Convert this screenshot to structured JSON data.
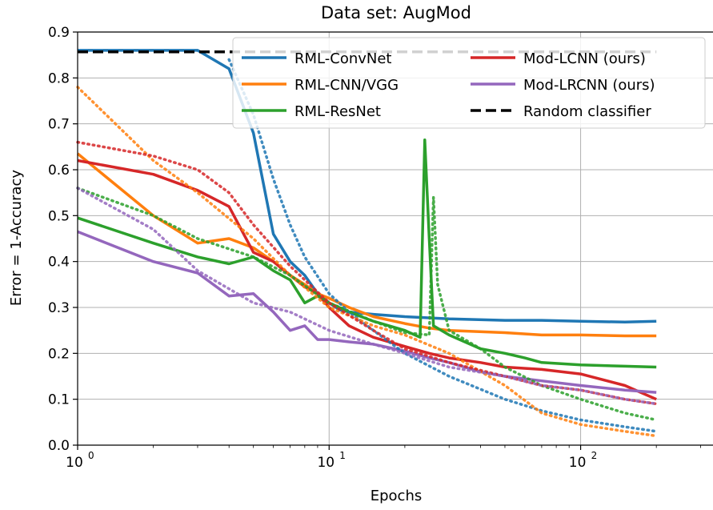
{
  "chart_data": {
    "type": "line",
    "title": "Data set: AugMod",
    "xlabel": "Epochs",
    "ylabel": "Error = 1-Accuracy",
    "x_scale": "log",
    "xlim": [
      1,
      200
    ],
    "ylim": [
      0,
      0.9
    ],
    "grid": true,
    "legend_position": "top-right",
    "x_ticks": [
      {
        "value": 1,
        "base": "10",
        "exp": "0"
      },
      {
        "value": 10,
        "base": "10",
        "exp": "1"
      },
      {
        "value": 100,
        "base": "10",
        "exp": "2"
      }
    ],
    "y_ticks": [
      "0.0",
      "0.1",
      "0.2",
      "0.3",
      "0.4",
      "0.5",
      "0.6",
      "0.7",
      "0.8",
      "0.9"
    ],
    "series": [
      {
        "name": "RML-ConvNet",
        "color": "#1f77b4",
        "style": "solid",
        "points": [
          [
            1,
            0.86
          ],
          [
            2,
            0.86
          ],
          [
            3,
            0.86
          ],
          [
            4,
            0.82
          ],
          [
            5,
            0.68
          ],
          [
            6,
            0.46
          ],
          [
            7,
            0.4
          ],
          [
            8,
            0.37
          ],
          [
            9,
            0.33
          ],
          [
            10,
            0.31
          ],
          [
            11,
            0.295
          ],
          [
            12,
            0.29
          ],
          [
            15,
            0.285
          ],
          [
            20,
            0.28
          ],
          [
            30,
            0.275
          ],
          [
            50,
            0.272
          ],
          [
            70,
            0.272
          ],
          [
            100,
            0.27
          ],
          [
            150,
            0.268
          ],
          [
            200,
            0.27
          ]
        ]
      },
      {
        "name": "RML-CNN/VGG",
        "color": "#ff7f0e",
        "style": "solid",
        "points": [
          [
            1,
            0.635
          ],
          [
            2,
            0.5
          ],
          [
            3,
            0.44
          ],
          [
            4,
            0.45
          ],
          [
            5,
            0.43
          ],
          [
            6,
            0.4
          ],
          [
            7,
            0.37
          ],
          [
            8,
            0.35
          ],
          [
            9,
            0.33
          ],
          [
            10,
            0.32
          ],
          [
            12,
            0.3
          ],
          [
            15,
            0.28
          ],
          [
            20,
            0.265
          ],
          [
            25,
            0.255
          ],
          [
            30,
            0.25
          ],
          [
            50,
            0.245
          ],
          [
            70,
            0.24
          ],
          [
            100,
            0.24
          ],
          [
            150,
            0.238
          ],
          [
            200,
            0.238
          ]
        ]
      },
      {
        "name": "RML-ResNet",
        "color": "#2ca02c",
        "style": "solid",
        "points": [
          [
            1,
            0.495
          ],
          [
            2,
            0.44
          ],
          [
            3,
            0.41
          ],
          [
            4,
            0.395
          ],
          [
            5,
            0.41
          ],
          [
            6,
            0.38
          ],
          [
            7,
            0.36
          ],
          [
            8,
            0.31
          ],
          [
            9,
            0.325
          ],
          [
            10,
            0.31
          ],
          [
            12,
            0.29
          ],
          [
            15,
            0.27
          ],
          [
            20,
            0.25
          ],
          [
            23,
            0.235
          ],
          [
            24,
            0.665
          ],
          [
            25,
            0.45
          ],
          [
            26,
            0.26
          ],
          [
            30,
            0.24
          ],
          [
            40,
            0.21
          ],
          [
            50,
            0.2
          ],
          [
            60,
            0.19
          ],
          [
            70,
            0.18
          ],
          [
            100,
            0.175
          ],
          [
            150,
            0.172
          ],
          [
            200,
            0.17
          ]
        ]
      },
      {
        "name": "Mod-LCNN (ours)",
        "color": "#d62728",
        "style": "solid",
        "points": [
          [
            1,
            0.62
          ],
          [
            2,
            0.59
          ],
          [
            3,
            0.555
          ],
          [
            4,
            0.52
          ],
          [
            5,
            0.42
          ],
          [
            6,
            0.4
          ],
          [
            7,
            0.37
          ],
          [
            8,
            0.345
          ],
          [
            9,
            0.33
          ],
          [
            10,
            0.3
          ],
          [
            12,
            0.26
          ],
          [
            15,
            0.235
          ],
          [
            20,
            0.215
          ],
          [
            25,
            0.2
          ],
          [
            30,
            0.19
          ],
          [
            40,
            0.18
          ],
          [
            50,
            0.17
          ],
          [
            70,
            0.165
          ],
          [
            100,
            0.155
          ],
          [
            150,
            0.13
          ],
          [
            200,
            0.1
          ]
        ]
      },
      {
        "name": "Mod-LRCNN (ours)",
        "color": "#9467bd",
        "style": "solid",
        "points": [
          [
            1,
            0.465
          ],
          [
            2,
            0.4
          ],
          [
            3,
            0.375
          ],
          [
            4,
            0.325
          ],
          [
            5,
            0.33
          ],
          [
            6,
            0.29
          ],
          [
            7,
            0.25
          ],
          [
            8,
            0.26
          ],
          [
            9,
            0.23
          ],
          [
            10,
            0.23
          ],
          [
            12,
            0.225
          ],
          [
            15,
            0.22
          ],
          [
            20,
            0.205
          ],
          [
            25,
            0.19
          ],
          [
            30,
            0.18
          ],
          [
            40,
            0.16
          ],
          [
            50,
            0.15
          ],
          [
            70,
            0.14
          ],
          [
            100,
            0.13
          ],
          [
            150,
            0.12
          ],
          [
            200,
            0.115
          ]
        ]
      },
      {
        "name": "Random classifier",
        "color": "#000000",
        "style": "dashed",
        "points": [
          [
            1,
            0.857
          ],
          [
            200,
            0.857
          ]
        ]
      },
      {
        "color": "#1f77b4",
        "style": "dotted",
        "points": [
          [
            4,
            0.84
          ],
          [
            5,
            0.72
          ],
          [
            6,
            0.58
          ],
          [
            7,
            0.48
          ],
          [
            8,
            0.41
          ],
          [
            10,
            0.33
          ],
          [
            12,
            0.29
          ],
          [
            15,
            0.25
          ],
          [
            20,
            0.2
          ],
          [
            30,
            0.15
          ],
          [
            50,
            0.1
          ],
          [
            70,
            0.075
          ],
          [
            100,
            0.055
          ],
          [
            150,
            0.04
          ],
          [
            200,
            0.03
          ]
        ]
      },
      {
        "color": "#ff7f0e",
        "style": "dotted",
        "points": [
          [
            1,
            0.78
          ],
          [
            2,
            0.62
          ],
          [
            3,
            0.55
          ],
          [
            5,
            0.45
          ],
          [
            7,
            0.37
          ],
          [
            10,
            0.3
          ],
          [
            15,
            0.26
          ],
          [
            20,
            0.24
          ],
          [
            30,
            0.2
          ],
          [
            50,
            0.13
          ],
          [
            70,
            0.07
          ],
          [
            100,
            0.045
          ],
          [
            150,
            0.03
          ],
          [
            200,
            0.02
          ]
        ]
      },
      {
        "color": "#2ca02c",
        "style": "dotted",
        "points": [
          [
            1,
            0.56
          ],
          [
            2,
            0.5
          ],
          [
            3,
            0.45
          ],
          [
            5,
            0.41
          ],
          [
            7,
            0.37
          ],
          [
            10,
            0.31
          ],
          [
            15,
            0.27
          ],
          [
            20,
            0.245
          ],
          [
            25,
            0.24
          ],
          [
            26,
            0.54
          ],
          [
            27,
            0.35
          ],
          [
            30,
            0.25
          ],
          [
            40,
            0.21
          ],
          [
            50,
            0.17
          ],
          [
            70,
            0.13
          ],
          [
            100,
            0.1
          ],
          [
            150,
            0.07
          ],
          [
            200,
            0.055
          ]
        ]
      },
      {
        "color": "#d62728",
        "style": "dotted",
        "points": [
          [
            1,
            0.66
          ],
          [
            2,
            0.63
          ],
          [
            3,
            0.6
          ],
          [
            4,
            0.55
          ],
          [
            5,
            0.48
          ],
          [
            7,
            0.39
          ],
          [
            10,
            0.31
          ],
          [
            15,
            0.25
          ],
          [
            20,
            0.21
          ],
          [
            30,
            0.18
          ],
          [
            50,
            0.15
          ],
          [
            70,
            0.13
          ],
          [
            100,
            0.12
          ],
          [
            150,
            0.1
          ],
          [
            200,
            0.09
          ]
        ]
      },
      {
        "color": "#9467bd",
        "style": "dotted",
        "points": [
          [
            1,
            0.56
          ],
          [
            2,
            0.47
          ],
          [
            3,
            0.38
          ],
          [
            5,
            0.31
          ],
          [
            7,
            0.29
          ],
          [
            10,
            0.25
          ],
          [
            15,
            0.22
          ],
          [
            20,
            0.2
          ],
          [
            30,
            0.17
          ],
          [
            50,
            0.15
          ],
          [
            70,
            0.13
          ],
          [
            100,
            0.12
          ],
          [
            150,
            0.1
          ],
          [
            200,
            0.09
          ]
        ]
      }
    ],
    "legend": [
      {
        "label": "RML-ConvNet",
        "color": "#1f77b4",
        "style": "solid"
      },
      {
        "label": "Mod-LCNN (ours)",
        "color": "#d62728",
        "style": "solid"
      },
      {
        "label": "RML-CNN/VGG",
        "color": "#ff7f0e",
        "style": "solid"
      },
      {
        "label": "Mod-LRCNN (ours)",
        "color": "#9467bd",
        "style": "solid"
      },
      {
        "label": "RML-ResNet",
        "color": "#2ca02c",
        "style": "solid"
      },
      {
        "label": "Random classifier",
        "color": "#000000",
        "style": "dashed"
      }
    ]
  }
}
